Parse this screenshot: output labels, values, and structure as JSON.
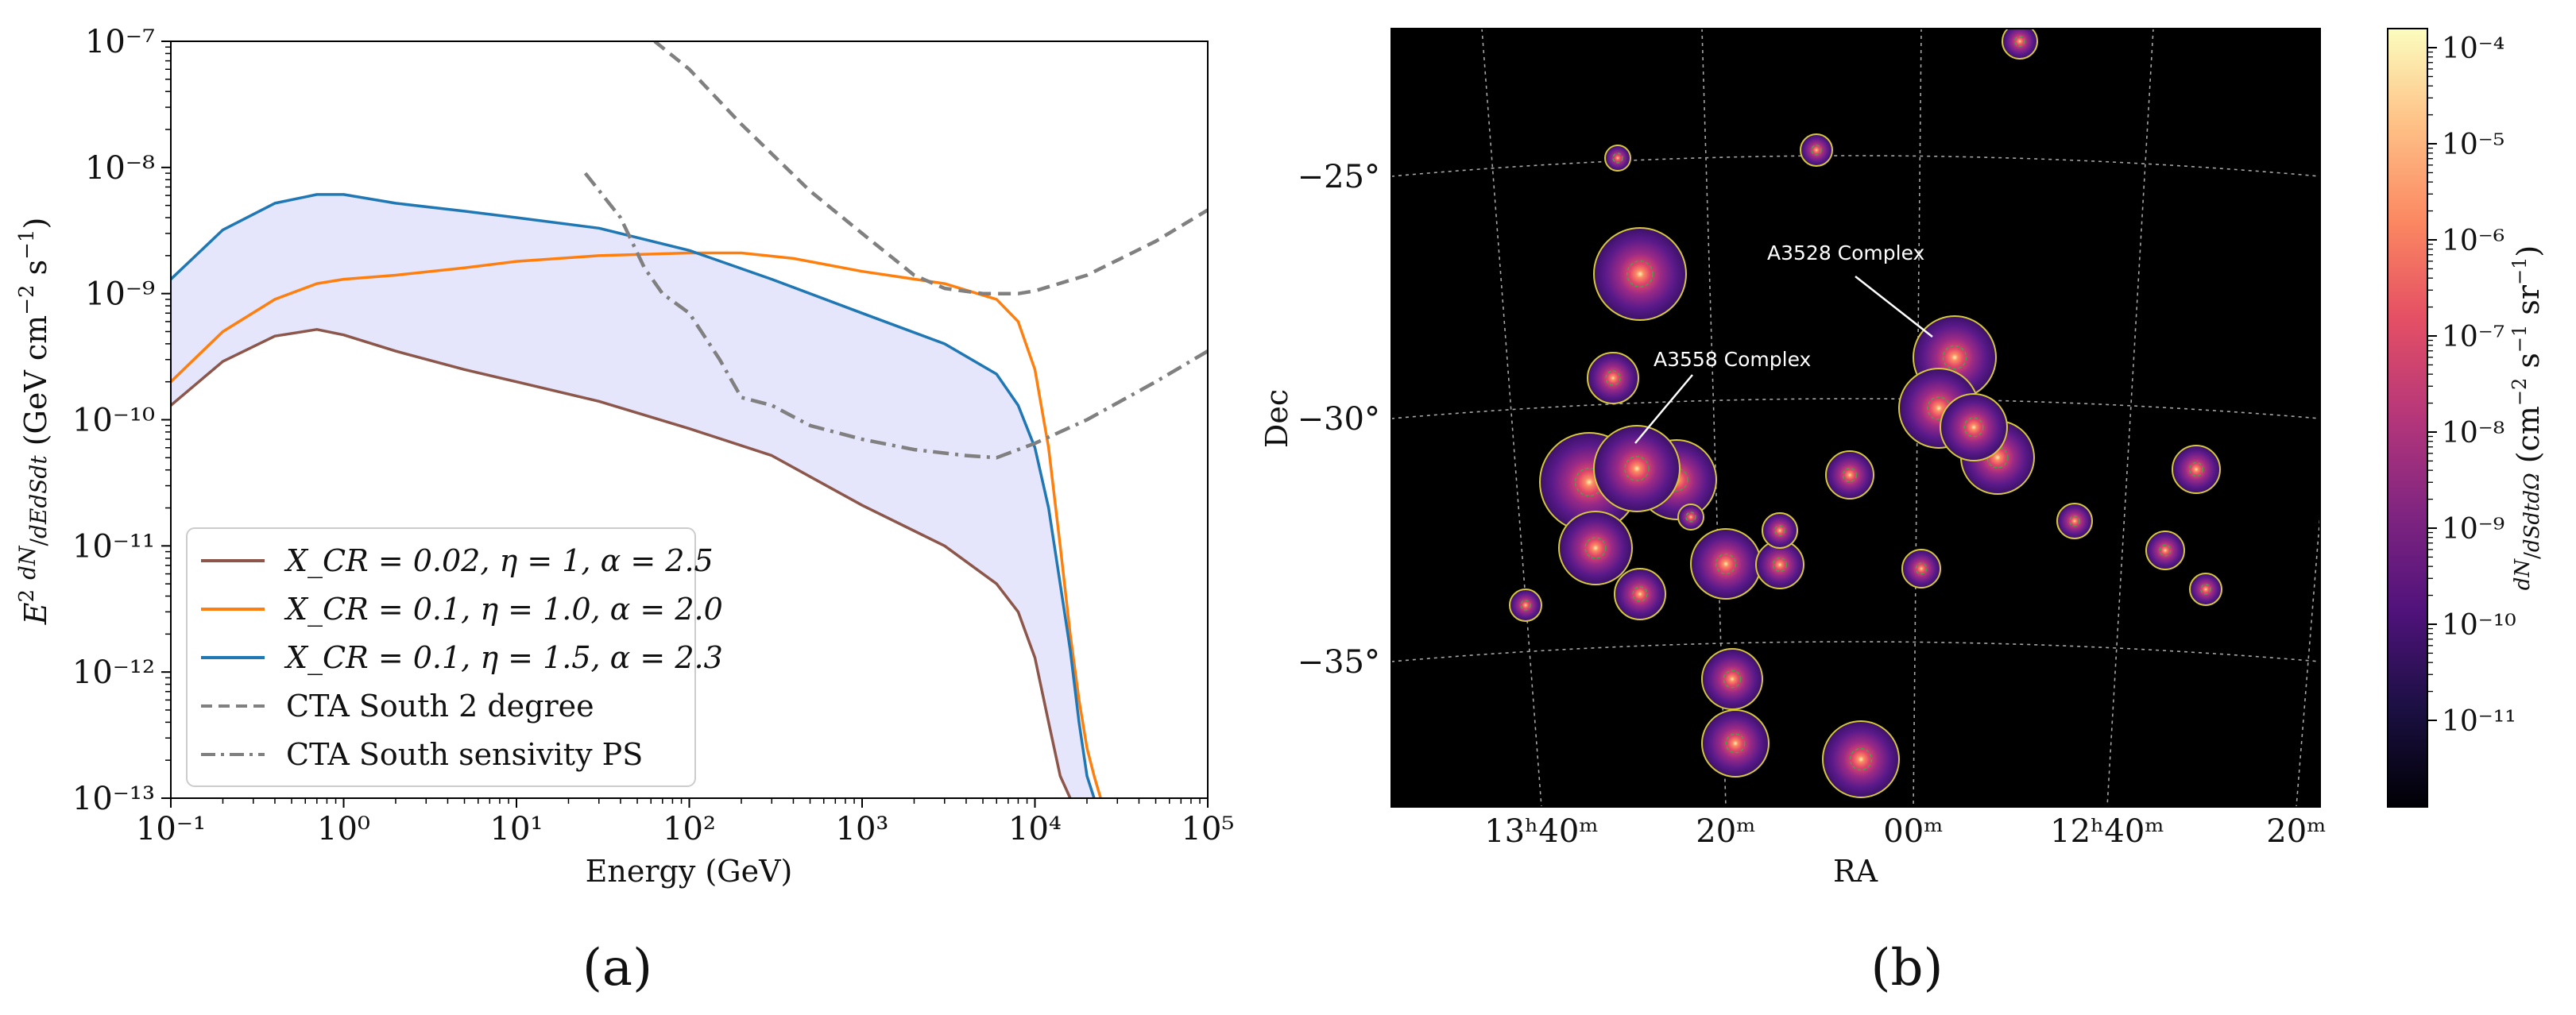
{
  "panel_labels": {
    "a": "(a)",
    "b": "(b)"
  },
  "chart_data": [
    {
      "type": "line",
      "panel": "(a)",
      "xlabel": "Energy (GeV)",
      "ylabel": "E² dN/dE dS dt (GeV cm⁻² s⁻¹)",
      "xscale": "log",
      "yscale": "log",
      "xlim": [
        0.1,
        100000
      ],
      "ylim": [
        1e-13,
        1e-07
      ],
      "x_tick_labels": [
        "10⁻¹",
        "10⁰",
        "10¹",
        "10²",
        "10³",
        "10⁴",
        "10⁵"
      ],
      "y_tick_labels": [
        "10⁻¹³",
        "10⁻¹²",
        "10⁻¹¹",
        "10⁻¹⁰",
        "10⁻⁹",
        "10⁻⁸",
        "10⁻⁷"
      ],
      "legend_position": "lower-left",
      "band": {
        "color": "#e5e5fb",
        "between": [
          "X_CR = 0.02, η = 1, α = 2.5",
          "X_CR = 0.1, η = 1.5, α = 2.3"
        ]
      },
      "series": [
        {
          "name": "X_CR = 0.02, η = 1, α = 2.5",
          "color": "#8c564b",
          "style": "solid",
          "x": [
            0.1,
            0.2,
            0.4,
            0.7,
            1,
            2,
            5,
            10,
            30,
            100,
            300,
            1000,
            3000,
            6000,
            8000,
            10000,
            12000,
            14000,
            16000
          ],
          "y": [
            1.3e-10,
            2.9e-10,
            4.6e-10,
            5.2e-10,
            4.7e-10,
            3.5e-10,
            2.5e-10,
            2e-10,
            1.4e-10,
            8.5e-11,
            5.2e-11,
            2.1e-11,
            1e-11,
            5e-12,
            3e-12,
            1.3e-12,
            4e-13,
            1.5e-13,
            1e-13
          ]
        },
        {
          "name": "X_CR = 0.1, η = 1.0, α = 2.0",
          "color": "#ff7f0e",
          "style": "solid",
          "x": [
            0.1,
            0.2,
            0.4,
            0.7,
            1,
            2,
            5,
            10,
            30,
            100,
            200,
            400,
            1000,
            3000,
            6000,
            8000,
            10000,
            12000,
            14000,
            16000,
            18000,
            20000,
            22000,
            24000
          ],
          "y": [
            2e-10,
            5e-10,
            9e-10,
            1.2e-09,
            1.3e-09,
            1.4e-09,
            1.6e-09,
            1.8e-09,
            2e-09,
            2.1e-09,
            2.1e-09,
            1.9e-09,
            1.5e-09,
            1.2e-09,
            9e-10,
            6e-10,
            2.5e-10,
            6e-11,
            1e-11,
            2e-12,
            6e-13,
            2.5e-13,
            1.5e-13,
            1e-13
          ]
        },
        {
          "name": "X_CR = 0.1, η = 1.5, α = 2.3",
          "color": "#1f77b4",
          "style": "solid",
          "x": [
            0.1,
            0.2,
            0.4,
            0.7,
            1,
            2,
            5,
            10,
            30,
            100,
            300,
            1000,
            3000,
            6000,
            8000,
            10000,
            12000,
            14000,
            16000,
            18000,
            20000,
            22000
          ],
          "y": [
            1.3e-09,
            3.2e-09,
            5.2e-09,
            6.1e-09,
            6.1e-09,
            5.2e-09,
            4.5e-09,
            4e-09,
            3.3e-09,
            2.2e-09,
            1.3e-09,
            7e-10,
            4e-10,
            2.3e-10,
            1.3e-10,
            6e-11,
            2e-11,
            5e-12,
            1.5e-12,
            4e-13,
            1.5e-13,
            1e-13
          ]
        },
        {
          "name": "CTA South 2 degree",
          "color": "#808080",
          "style": "dashed",
          "x": [
            63,
            100,
            200,
            500,
            1000,
            2000,
            3000,
            5000,
            8000,
            10000,
            20000,
            50000,
            100000
          ],
          "y": [
            1e-07,
            6e-08,
            2.2e-08,
            6.5e-09,
            3e-09,
            1.4e-09,
            1.1e-09,
            1e-09,
            1e-09,
            1.05e-09,
            1.4e-09,
            2.6e-09,
            4.6e-09
          ]
        },
        {
          "name": "CTA South sensivity PS",
          "color": "#808080",
          "style": "dashdot",
          "x": [
            25,
            40,
            55,
            70,
            100,
            150,
            200,
            300,
            500,
            1000,
            2000,
            4000,
            6000,
            10000,
            20000,
            50000,
            100000
          ],
          "y": [
            9e-09,
            4e-09,
            1.6e-09,
            1e-09,
            7e-10,
            3e-10,
            1.5e-10,
            1.3e-10,
            9e-11,
            7e-11,
            5.8e-11,
            5.2e-11,
            5e-11,
            6.5e-11,
            1e-10,
            2e-10,
            3.5e-10
          ]
        }
      ]
    },
    {
      "type": "heatmap",
      "panel": "(b)",
      "xlabel": "RA",
      "ylabel": "Dec",
      "x_tick_labels": [
        "13ʰ40ᵐ",
        "20ᵐ",
        "00ᵐ",
        "12ʰ40ᵐ",
        "20ᵐ"
      ],
      "y_tick_labels": [
        "−25°",
        "−30°",
        "−35°"
      ],
      "annotations": [
        "A3528 Complex",
        "A3558 Complex"
      ],
      "colorbar": {
        "label": "dN/dS dt dΩ (cm⁻² s⁻¹ sr⁻¹)",
        "scale": "log",
        "colormap": "magma",
        "tick_labels": [
          "10⁻¹¹",
          "10⁻¹⁰",
          "10⁻⁹",
          "10⁻⁸",
          "10⁻⁷",
          "10⁻⁶",
          "10⁻⁵",
          "10⁻⁴"
        ]
      }
    }
  ]
}
